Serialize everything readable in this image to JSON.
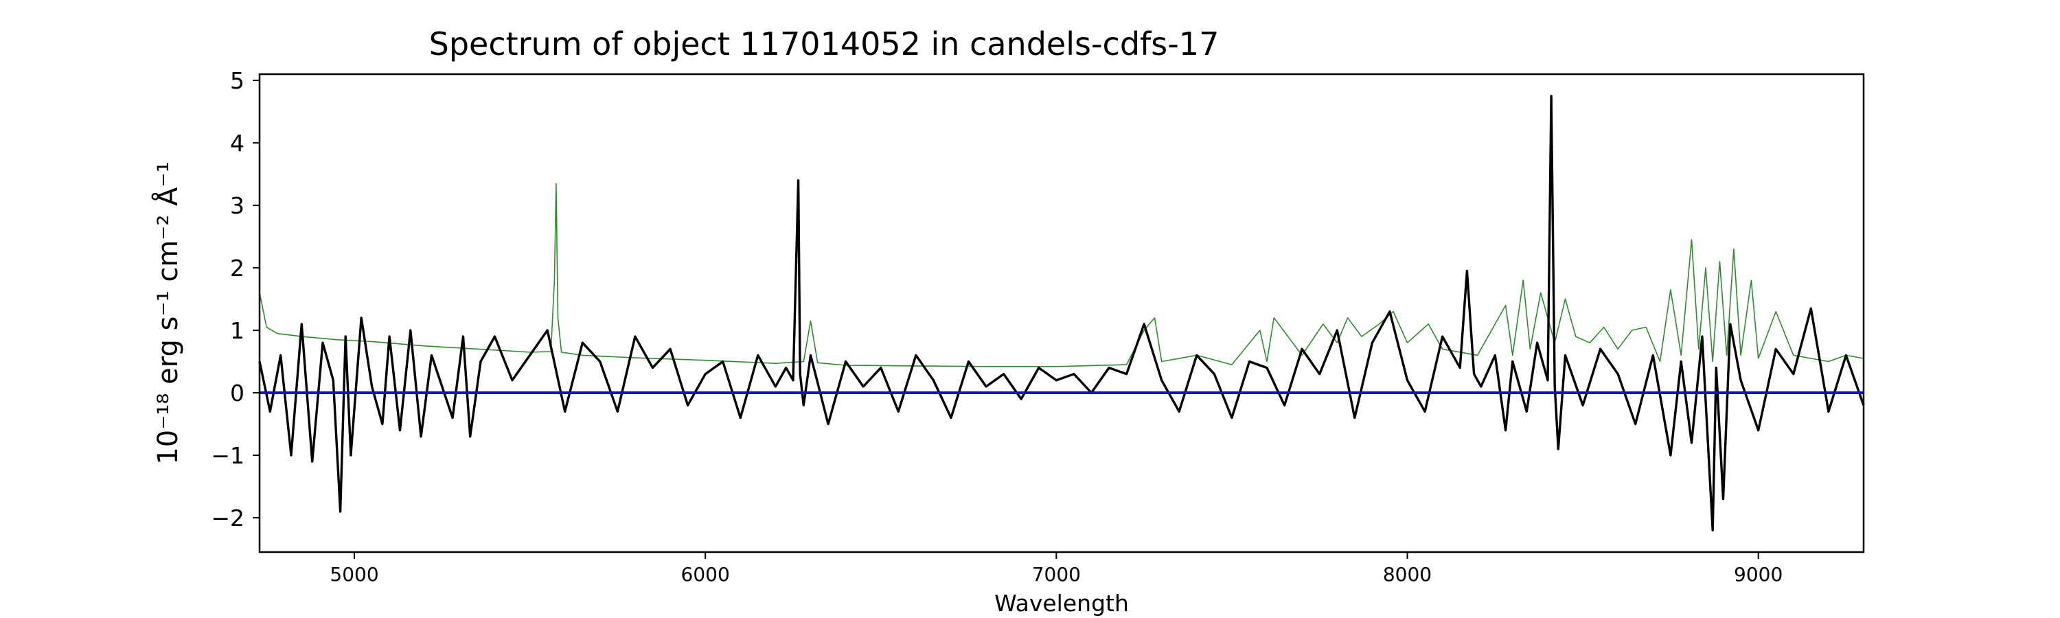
{
  "chart_data": {
    "type": "line",
    "title": "Spectrum of object 117014052 in candels-cdfs-17",
    "xlabel": "Wavelength",
    "ylabel": "10⁻¹⁸ erg s⁻¹ cm⁻² Å⁻¹",
    "xlim": [
      4730,
      9300
    ],
    "ylim": [
      -2.55,
      5.1
    ],
    "x_ticks": [
      5000,
      6000,
      7000,
      8000,
      9000
    ],
    "y_ticks": [
      -2,
      -1,
      0,
      1,
      2,
      3,
      4,
      5
    ],
    "grid": false,
    "legend": "none",
    "series": [
      {
        "role": "error",
        "color": "#2e8b2e",
        "x": [
          4730,
          4750,
          4780,
          4850,
          4950,
          5050,
          5200,
          5350,
          5500,
          5560,
          5570,
          5575,
          5580,
          5590,
          5650,
          5800,
          6000,
          6200,
          6280,
          6300,
          6320,
          6400,
          6600,
          6800,
          7000,
          7200,
          7250,
          7280,
          7300,
          7400,
          7500,
          7580,
          7600,
          7620,
          7700,
          7760,
          7800,
          7830,
          7870,
          7920,
          7960,
          8000,
          8060,
          8100,
          8200,
          8280,
          8300,
          8330,
          8350,
          8380,
          8420,
          8450,
          8480,
          8520,
          8560,
          8600,
          8640,
          8680,
          8720,
          8750,
          8780,
          8810,
          8830,
          8850,
          8870,
          8890,
          8910,
          8930,
          8950,
          8980,
          9000,
          9050,
          9100,
          9150,
          9200,
          9250,
          9300
        ],
        "y": [
          1.6,
          1.05,
          0.95,
          0.9,
          0.85,
          0.82,
          0.75,
          0.7,
          0.65,
          0.66,
          1.8,
          3.35,
          1.2,
          0.65,
          0.6,
          0.56,
          0.52,
          0.47,
          0.5,
          1.15,
          0.48,
          0.44,
          0.43,
          0.42,
          0.42,
          0.45,
          1.0,
          1.2,
          0.5,
          0.6,
          0.45,
          1.0,
          0.5,
          1.2,
          0.6,
          1.1,
          0.8,
          1.2,
          0.9,
          1.1,
          1.3,
          0.8,
          1.1,
          0.7,
          0.6,
          1.4,
          0.6,
          1.8,
          0.7,
          1.6,
          0.8,
          1.5,
          0.9,
          0.8,
          1.05,
          0.7,
          1.0,
          1.05,
          0.5,
          1.65,
          0.6,
          2.45,
          0.7,
          2.0,
          0.5,
          2.1,
          0.6,
          2.3,
          0.6,
          1.8,
          0.55,
          1.3,
          0.6,
          0.55,
          0.5,
          0.6,
          0.55
        ]
      },
      {
        "role": "flux",
        "color": "#000000",
        "x": [
          4730,
          4760,
          4790,
          4820,
          4850,
          4880,
          4910,
          4940,
          4960,
          4975,
          4990,
          5020,
          5050,
          5080,
          5100,
          5130,
          5160,
          5190,
          5220,
          5250,
          5280,
          5310,
          5330,
          5360,
          5400,
          5450,
          5500,
          5550,
          5600,
          5650,
          5700,
          5750,
          5800,
          5850,
          5900,
          5950,
          6000,
          6050,
          6100,
          6150,
          6200,
          6230,
          6250,
          6265,
          6270,
          6280,
          6300,
          6350,
          6400,
          6450,
          6500,
          6550,
          6600,
          6650,
          6700,
          6750,
          6800,
          6850,
          6900,
          6950,
          7000,
          7050,
          7100,
          7150,
          7200,
          7250,
          7300,
          7350,
          7400,
          7450,
          7500,
          7550,
          7600,
          7650,
          7700,
          7750,
          7800,
          7850,
          7900,
          7950,
          8000,
          8050,
          8100,
          8150,
          8170,
          8190,
          8210,
          8250,
          8280,
          8300,
          8340,
          8370,
          8400,
          8410,
          8420,
          8430,
          8450,
          8500,
          8550,
          8600,
          8650,
          8700,
          8750,
          8780,
          8810,
          8840,
          8870,
          8880,
          8900,
          8920,
          8950,
          9000,
          9050,
          9100,
          9150,
          9200,
          9250,
          9300
        ],
        "y": [
          0.5,
          -0.3,
          0.6,
          -1.0,
          1.1,
          -1.1,
          0.8,
          0.2,
          -1.9,
          0.9,
          -1.0,
          1.2,
          0.1,
          -0.5,
          0.9,
          -0.6,
          1.0,
          -0.7,
          0.6,
          0.1,
          -0.4,
          0.9,
          -0.7,
          0.5,
          0.9,
          0.2,
          0.6,
          1.0,
          -0.3,
          0.8,
          0.5,
          -0.3,
          0.9,
          0.4,
          0.7,
          -0.2,
          0.3,
          0.5,
          -0.4,
          0.6,
          0.1,
          0.4,
          0.2,
          3.4,
          0.3,
          -0.2,
          0.6,
          -0.5,
          0.5,
          0.1,
          0.4,
          -0.3,
          0.6,
          0.2,
          -0.4,
          0.5,
          0.1,
          0.3,
          -0.1,
          0.4,
          0.2,
          0.3,
          0.0,
          0.4,
          0.3,
          1.1,
          0.2,
          -0.3,
          0.6,
          0.3,
          -0.4,
          0.5,
          0.4,
          -0.2,
          0.7,
          0.3,
          1.0,
          -0.4,
          0.8,
          1.3,
          0.2,
          -0.3,
          0.9,
          0.4,
          1.95,
          0.3,
          0.1,
          0.6,
          -0.6,
          0.5,
          -0.3,
          0.8,
          0.2,
          4.75,
          0.1,
          -0.9,
          0.6,
          -0.2,
          0.7,
          0.3,
          -0.5,
          0.6,
          -1.0,
          0.5,
          -0.8,
          0.9,
          -2.2,
          0.4,
          -1.7,
          1.1,
          0.2,
          -0.6,
          0.7,
          0.3,
          1.35,
          -0.3,
          0.6,
          -0.2
        ]
      },
      {
        "role": "zero",
        "color": "#1010cc",
        "x": [
          4730,
          9300
        ],
        "y": [
          0,
          0
        ]
      }
    ]
  }
}
